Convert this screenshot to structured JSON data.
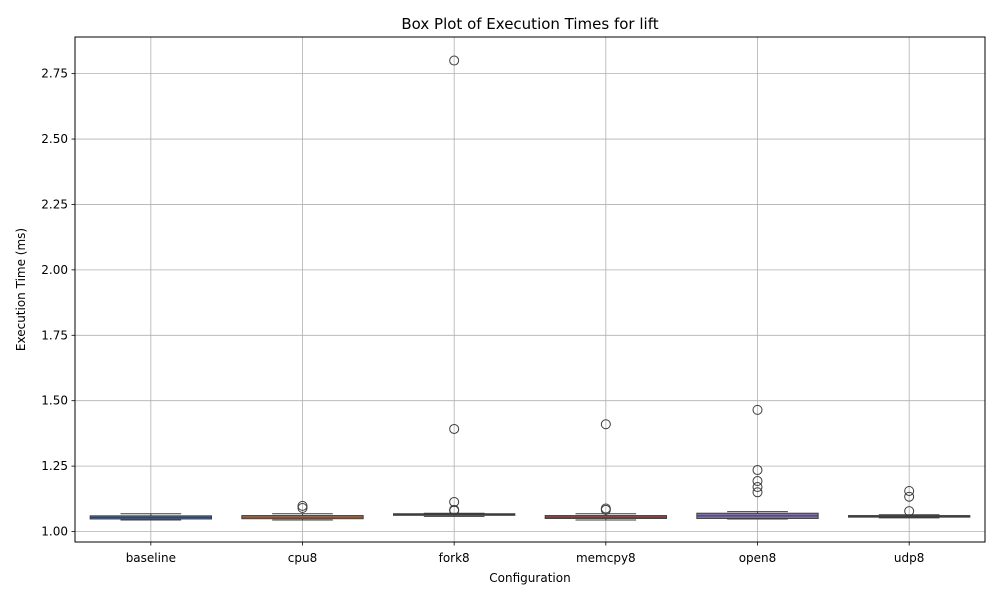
{
  "chart_data": {
    "type": "box",
    "title": "Box Plot of Execution Times for lift",
    "xlabel": "Configuration",
    "ylabel": "Execution Time (ms)",
    "ylim": [
      0.96,
      2.89
    ],
    "yticks": [
      "1.00",
      "1.25",
      "1.50",
      "1.75",
      "2.00",
      "2.25",
      "2.50",
      "2.75"
    ],
    "grid": true,
    "categories": [
      "baseline",
      "cpu8",
      "fork8",
      "memcpy8",
      "open8",
      "udp8"
    ],
    "boxes": [
      {
        "name": "baseline",
        "color": "#4c72b0",
        "whisker_low": 1.044,
        "q1": 1.048,
        "median": 1.054,
        "q3": 1.06,
        "whisker_high": 1.068,
        "outliers": []
      },
      {
        "name": "cpu8",
        "color": "#dd8452",
        "whisker_low": 1.044,
        "q1": 1.049,
        "median": 1.055,
        "q3": 1.061,
        "whisker_high": 1.068,
        "outliers": [
          1.09,
          1.098
        ]
      },
      {
        "name": "fork8",
        "color": "#55a868",
        "whisker_low": 1.058,
        "q1": 1.062,
        "median": 1.065,
        "q3": 1.068,
        "whisker_high": 1.07,
        "outliers": [
          1.08,
          1.083,
          1.113,
          1.392,
          2.8
        ]
      },
      {
        "name": "memcpy8",
        "color": "#c44e52",
        "whisker_low": 1.044,
        "q1": 1.05,
        "median": 1.055,
        "q3": 1.061,
        "whisker_high": 1.068,
        "outliers": [
          1.083,
          1.088,
          1.41
        ]
      },
      {
        "name": "open8",
        "color": "#8172b3",
        "whisker_low": 1.048,
        "q1": 1.05,
        "median": 1.06,
        "q3": 1.07,
        "whisker_high": 1.076,
        "outliers": [
          1.15,
          1.17,
          1.193,
          1.235,
          1.465
        ]
      },
      {
        "name": "udp8",
        "color": "#937860",
        "whisker_low": 1.052,
        "q1": 1.055,
        "median": 1.058,
        "q3": 1.061,
        "whisker_high": 1.064,
        "outliers": [
          1.078,
          1.133,
          1.155
        ]
      }
    ]
  }
}
